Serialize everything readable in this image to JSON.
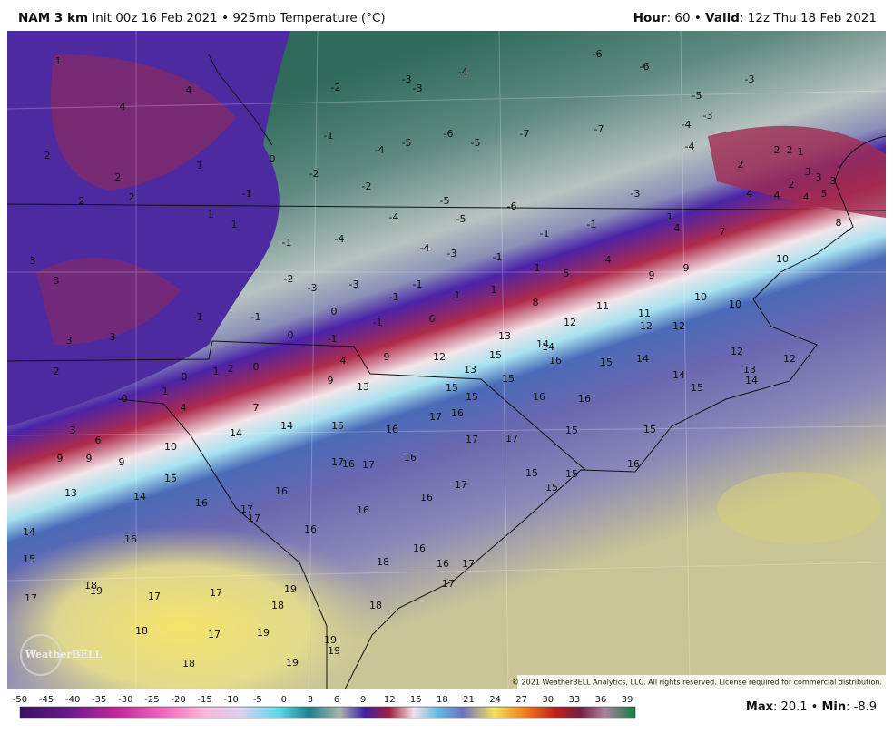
{
  "header": {
    "model": "NAM 3 km",
    "init": "Init 00z 16 Feb 2021",
    "separator": "•",
    "field": "925mb Temperature (°C)",
    "hour_label": "Hour",
    "hour": "60",
    "valid_label": "Valid",
    "valid": "12z Thu 18 Feb 2021"
  },
  "copyright": "© 2021 WeatherBELL Analytics, LLC. All rights reserved. License required for commercial distribution.",
  "logo": "WeatherBELL",
  "colorbar_ticks": [
    -50,
    -45,
    -40,
    -35,
    -30,
    -25,
    -20,
    -15,
    -10,
    -5,
    0,
    3,
    6,
    9,
    12,
    15,
    18,
    21,
    24,
    27,
    30,
    33,
    36,
    39
  ],
  "stats": {
    "max_label": "Max",
    "max": "20.1",
    "min_label": "Min",
    "min": "-8.9"
  },
  "map_labels": [
    1,
    4,
    4,
    2,
    2,
    1,
    2,
    2,
    1,
    1,
    3,
    3,
    -1,
    3,
    3,
    2,
    0,
    1,
    2,
    0,
    0,
    1,
    4,
    3,
    6,
    9,
    9,
    9,
    10,
    7,
    14,
    14,
    15,
    14,
    13,
    16,
    17,
    17,
    16,
    16,
    16,
    14,
    15,
    17,
    18,
    19,
    17,
    17,
    18,
    19,
    18,
    17,
    19,
    18,
    19,
    19,
    19,
    18,
    18,
    16,
    16,
    17,
    17,
    16,
    16,
    17,
    16,
    16,
    17,
    17,
    16,
    15,
    13,
    9,
    4,
    9,
    12,
    13,
    15,
    15,
    15,
    15,
    16,
    17,
    17,
    17,
    16,
    16,
    16,
    14,
    14,
    13,
    12,
    15,
    15,
    15,
    15,
    15,
    14,
    15,
    16,
    14,
    15,
    12,
    13,
    14,
    12,
    12,
    12,
    11,
    11,
    8,
    10,
    10,
    9,
    9,
    10,
    7,
    4,
    4,
    5,
    1,
    1,
    1,
    6,
    -1,
    0,
    0,
    -1,
    -3,
    -1,
    -1,
    -3,
    -2,
    -1,
    -1,
    -4,
    -4,
    -3,
    -1,
    -1,
    -1,
    1,
    -4,
    -5,
    -6,
    -5,
    -2,
    -2,
    -1,
    0,
    -4,
    -5,
    -6,
    -5,
    -7,
    -7,
    -3,
    -4,
    -4,
    -3,
    -5,
    -6,
    -6,
    -4,
    -3,
    -3,
    -2,
    -1,
    -3,
    2,
    2,
    2,
    1,
    2,
    3,
    3,
    3,
    4,
    4,
    4,
    5,
    8
  ]
}
